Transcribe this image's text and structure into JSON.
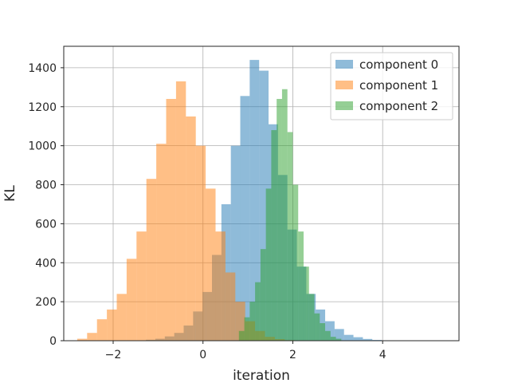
{
  "chart_data": {
    "type": "bar",
    "xlabel": "iteration",
    "ylabel": "KL",
    "xlim": [
      -3.1,
      5.7
    ],
    "ylim": [
      0,
      1510
    ],
    "xticks": [
      -2,
      0,
      2,
      4
    ],
    "yticks": [
      0,
      200,
      400,
      600,
      800,
      1000,
      1200,
      1400
    ],
    "grid": true,
    "legend_position": "top-right",
    "series": [
      {
        "name": "component 0",
        "color": "#1f77b4",
        "alpha": 0.5,
        "bin_edges": [
          -1.48,
          -1.27,
          -1.06,
          -0.85,
          -0.64,
          -0.43,
          -0.22,
          -0.01,
          0.2,
          0.41,
          0.62,
          0.83,
          1.04,
          1.25,
          1.46,
          1.67,
          1.88,
          2.09,
          2.3,
          2.51,
          2.72,
          2.93,
          3.14,
          3.35,
          3.56,
          3.77,
          3.98,
          4.19
        ],
        "counts": [
          2,
          5,
          10,
          22,
          40,
          78,
          150,
          250,
          440,
          700,
          1000,
          1255,
          1440,
          1385,
          1110,
          850,
          570,
          380,
          240,
          160,
          100,
          60,
          30,
          18,
          9,
          4,
          1
        ]
      },
      {
        "name": "component 1",
        "color": "#ff7f0e",
        "alpha": 0.5,
        "bin_edges": [
          -2.8,
          -2.58,
          -2.36,
          -2.14,
          -1.92,
          -1.7,
          -1.48,
          -1.26,
          -1.04,
          -0.82,
          -0.6,
          -0.38,
          -0.16,
          0.06,
          0.28,
          0.5,
          0.72,
          0.94,
          1.16,
          1.38,
          1.6,
          1.82,
          2.04
        ],
        "counts": [
          10,
          40,
          110,
          160,
          240,
          420,
          560,
          830,
          1010,
          1240,
          1330,
          1150,
          1000,
          780,
          560,
          350,
          200,
          100,
          50,
          20,
          8,
          3
        ]
      },
      {
        "name": "component 2",
        "color": "#2ca02c",
        "alpha": 0.5,
        "bin_edges": [
          0.8,
          0.92,
          1.04,
          1.16,
          1.28,
          1.4,
          1.52,
          1.64,
          1.76,
          1.88,
          2.0,
          2.12,
          2.24,
          2.36,
          2.48,
          2.6,
          2.72,
          2.84,
          2.96,
          3.08
        ],
        "counts": [
          50,
          120,
          200,
          300,
          470,
          780,
          1080,
          1240,
          1290,
          1070,
          800,
          560,
          380,
          240,
          140,
          90,
          50,
          20,
          10
        ]
      }
    ]
  }
}
